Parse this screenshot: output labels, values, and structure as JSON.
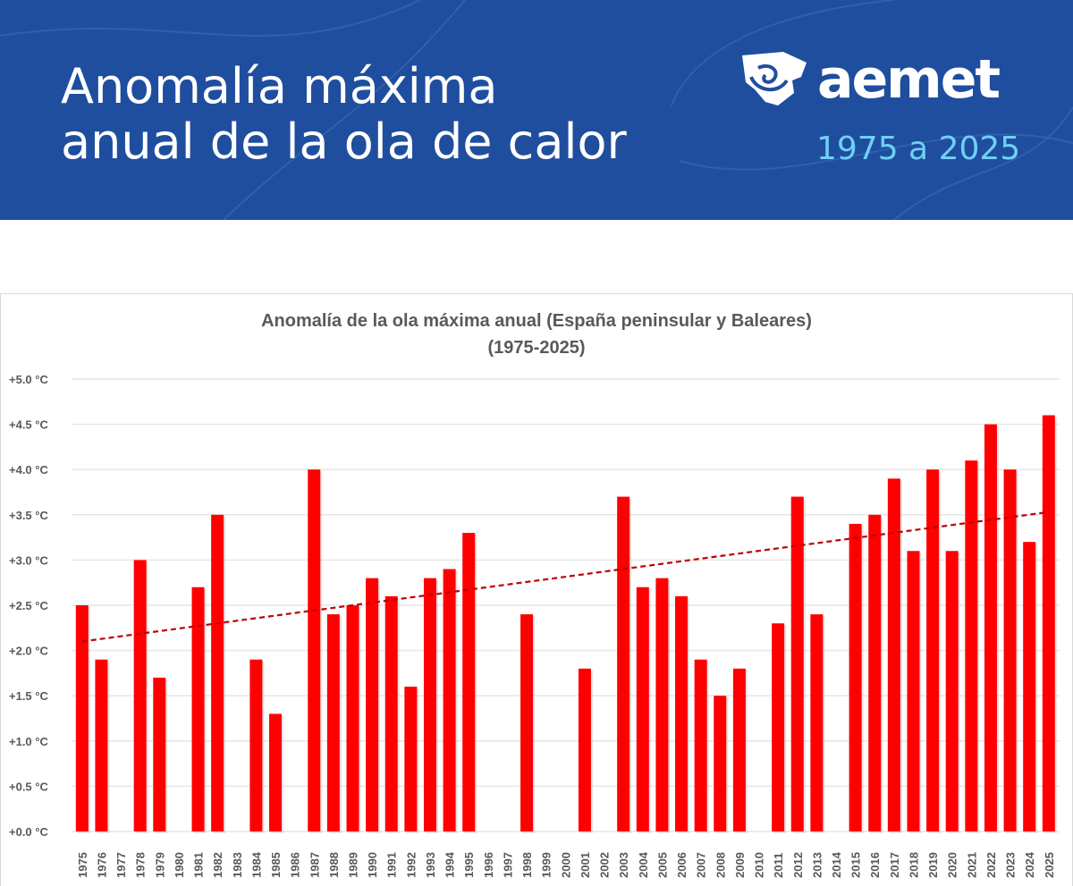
{
  "header": {
    "title_line1": "Anomalía máxima",
    "title_line2": "anual de la ola de calor",
    "logo_text": "aemet",
    "period": "1975 a 2025",
    "background_color": "#1f4e9f",
    "period_color": "#6fd0f5"
  },
  "chart_data": {
    "type": "bar",
    "title_line1": "Anomalía de la ola máxima anual (España peninsular y Baleares)",
    "title_line2": "(1975-2025)",
    "xlabel": "",
    "ylabel": "",
    "ylim": [
      0,
      5
    ],
    "grid": true,
    "bar_color": "#ff0000",
    "trend_color": "#c00000",
    "y_ticks": [
      "+0.0 °C",
      "+0.5 °C",
      "+1.0 °C",
      "+1.5 °C",
      "+2.0 °C",
      "+2.5 °C",
      "+3.0 °C",
      "+3.5 °C",
      "+4.0 °C",
      "+4.5 °C",
      "+5.0 °C"
    ],
    "categories": [
      "1975",
      "1976",
      "1977",
      "1978",
      "1979",
      "1980",
      "1981",
      "1982",
      "1983",
      "1984",
      "1985",
      "1986",
      "1987",
      "1988",
      "1989",
      "1990",
      "1991",
      "1992",
      "1993",
      "1994",
      "1995",
      "1996",
      "1997",
      "1998",
      "1999",
      "2000",
      "2001",
      "2002",
      "2003",
      "2004",
      "2005",
      "2006",
      "2007",
      "2008",
      "2009",
      "2010",
      "2011",
      "2012",
      "2013",
      "2014",
      "2015",
      "2016",
      "2017",
      "2018",
      "2019",
      "2020",
      "2021",
      "2022",
      "2023",
      "2024",
      "2025"
    ],
    "values": [
      2.5,
      1.9,
      null,
      3.0,
      1.7,
      null,
      2.7,
      3.5,
      null,
      1.9,
      1.3,
      null,
      4.0,
      2.4,
      2.5,
      2.8,
      2.6,
      1.6,
      2.8,
      2.9,
      3.3,
      null,
      null,
      2.4,
      null,
      null,
      1.8,
      null,
      3.7,
      2.7,
      2.8,
      2.6,
      1.9,
      1.5,
      1.8,
      null,
      2.3,
      3.7,
      2.4,
      null,
      3.4,
      3.5,
      3.9,
      3.1,
      4.0,
      3.1,
      4.1,
      4.5,
      4.0,
      3.2,
      4.6
    ],
    "trend": {
      "style": "dashed linear",
      "start": {
        "x": "1975",
        "y": 2.1
      },
      "end": {
        "x": "2025",
        "y": 3.53
      }
    }
  }
}
